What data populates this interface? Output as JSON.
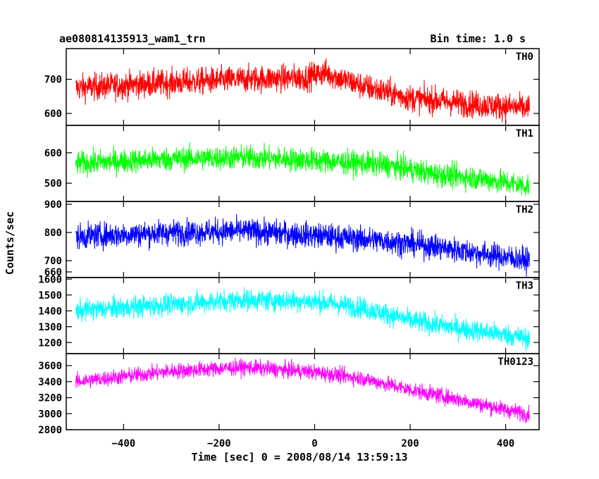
{
  "title_left": "ae080814135913_wam1_trn",
  "title_right": "Bin time: 1.0 s",
  "xlabel": "Time [sec] 0 = 2008/08/14 13:59:13",
  "ylabel": "Counts/sec",
  "chart_data": {
    "type": "line",
    "x_range": [
      -520,
      470
    ],
    "x_ticks": [
      -400,
      -200,
      0,
      200,
      400
    ],
    "x_tick_labels": [
      "−400",
      "−200",
      "0",
      "200",
      "400"
    ],
    "x_data_range": [
      -500,
      450
    ],
    "bin_time_s": 1.0,
    "grid": false,
    "panels": [
      {
        "name": "TH0",
        "color": "#ff0000",
        "ylim": [
          565,
          790
        ],
        "yticks": [
          600,
          700
        ],
        "ytick_labels": [
          "600",
          "700"
        ],
        "trend": [
          [
            -500,
            675
          ],
          [
            -300,
            690
          ],
          [
            -150,
            700
          ],
          [
            -20,
            705
          ],
          [
            20,
            720
          ],
          [
            100,
            680
          ],
          [
            200,
            645
          ],
          [
            350,
            625
          ],
          [
            450,
            615
          ]
        ],
        "noise": 28
      },
      {
        "name": "TH1",
        "color": "#00ff00",
        "ylim": [
          440,
          690
        ],
        "yticks": [
          500,
          600
        ],
        "ytick_labels": [
          "500",
          "600"
        ],
        "trend": [
          [
            -500,
            565
          ],
          [
            -300,
            580
          ],
          [
            -150,
            585
          ],
          [
            0,
            575
          ],
          [
            150,
            560
          ],
          [
            250,
            530
          ],
          [
            350,
            515
          ],
          [
            450,
            490
          ]
        ],
        "noise": 28
      },
      {
        "name": "TH2",
        "color": "#0000ff",
        "ylim": [
          640,
          910
        ],
        "yticks": [
          660,
          700,
          800,
          900
        ],
        "ytick_labels": [
          "660",
          "700",
          "800",
          "900"
        ],
        "trend": [
          [
            -500,
            785
          ],
          [
            -300,
            800
          ],
          [
            -150,
            805
          ],
          [
            0,
            790
          ],
          [
            150,
            770
          ],
          [
            250,
            750
          ],
          [
            350,
            725
          ],
          [
            450,
            700
          ]
        ],
        "noise": 32
      },
      {
        "name": "TH3",
        "color": "#00ffff",
        "ylim": [
          1130,
          1610
        ],
        "yticks": [
          1200,
          1300,
          1400,
          1500,
          1600
        ],
        "ytick_labels": [
          "1200",
          "1300",
          "1400",
          "1500",
          "1600"
        ],
        "trend": [
          [
            -500,
            1400
          ],
          [
            -300,
            1440
          ],
          [
            -150,
            1470
          ],
          [
            0,
            1460
          ],
          [
            100,
            1420
          ],
          [
            200,
            1340
          ],
          [
            300,
            1290
          ],
          [
            400,
            1250
          ],
          [
            450,
            1225
          ]
        ],
        "noise": 48
      },
      {
        "name": "TH0123",
        "color": "#ff00ff",
        "ylim": [
          2800,
          3750
        ],
        "yticks": [
          2800,
          3000,
          3200,
          3400,
          3600
        ],
        "ytick_labels": [
          "2800",
          "3000",
          "3200",
          "3400",
          "3600"
        ],
        "trend": [
          [
            -500,
            3400
          ],
          [
            -300,
            3530
          ],
          [
            -150,
            3580
          ],
          [
            0,
            3520
          ],
          [
            100,
            3440
          ],
          [
            200,
            3300
          ],
          [
            300,
            3180
          ],
          [
            400,
            3050
          ],
          [
            450,
            2990
          ]
        ],
        "noise": 70
      }
    ]
  }
}
